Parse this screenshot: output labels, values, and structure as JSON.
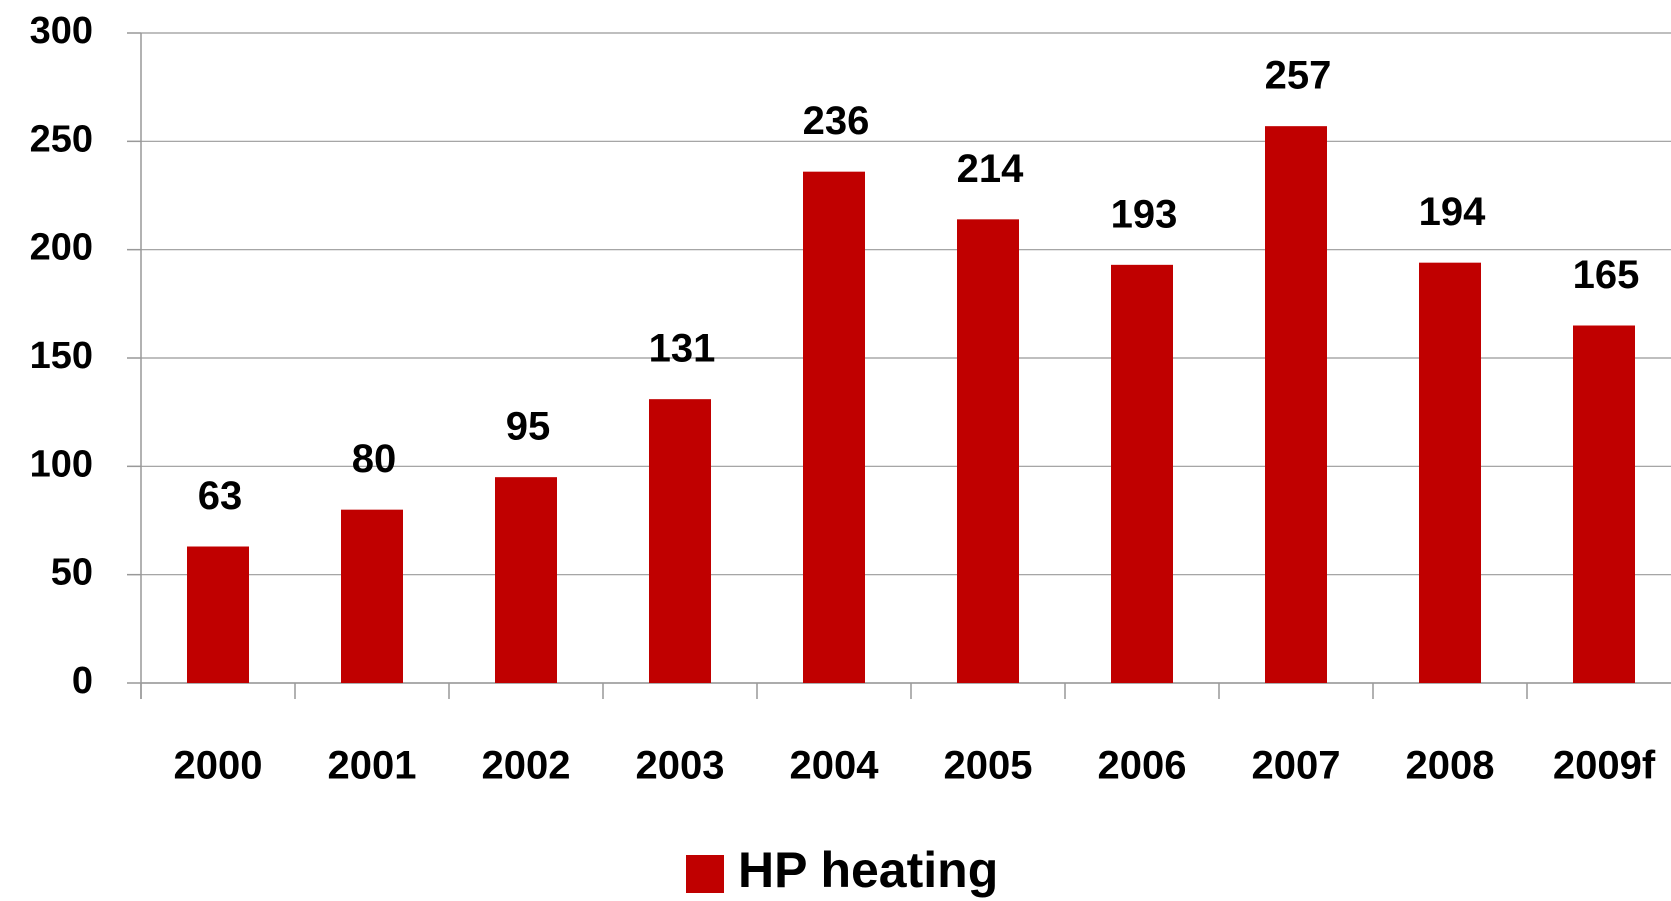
{
  "chart_data": {
    "type": "bar",
    "categories": [
      "2000",
      "2001",
      "2002",
      "2003",
      "2004",
      "2005",
      "2006",
      "2007",
      "2008",
      "2009f"
    ],
    "series": [
      {
        "name": "HP heating",
        "color": "#c00000",
        "values": [
          63,
          80,
          95,
          131,
          236,
          214,
          193,
          257,
          194,
          165
        ]
      }
    ],
    "ylim": [
      0,
      300
    ],
    "yticks": [
      0,
      50,
      100,
      150,
      200,
      250,
      300
    ],
    "grid": true,
    "legend": "bottom"
  }
}
